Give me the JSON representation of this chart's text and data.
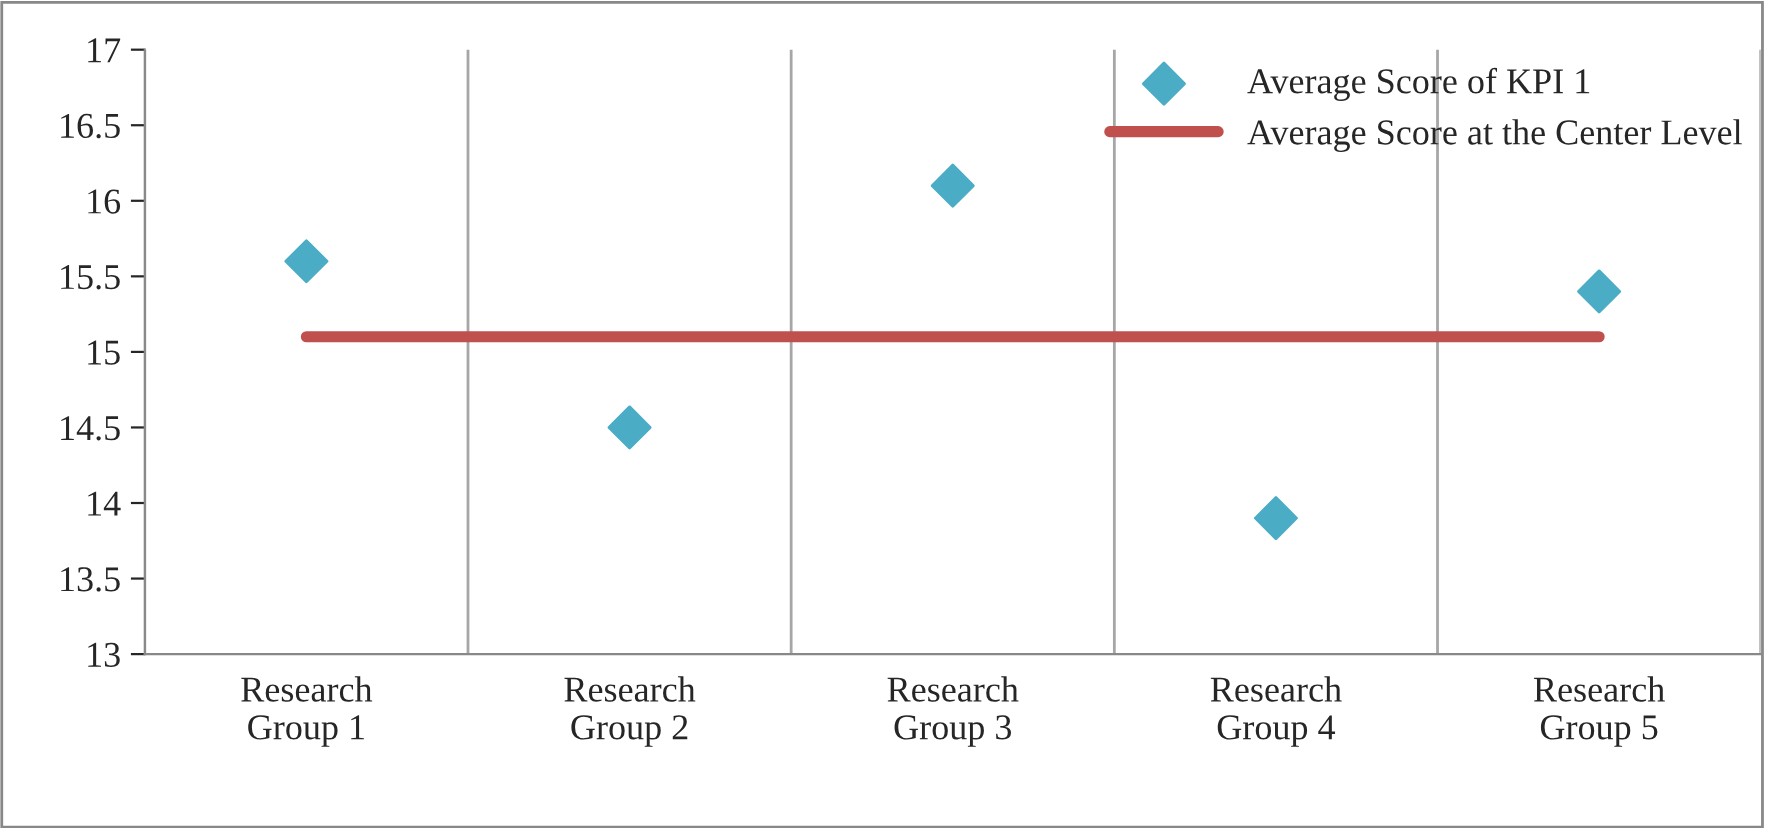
{
  "chart_data": {
    "type": "scatter",
    "categories": [
      "Research Group 1",
      "Research Group 2",
      "Research Group 3",
      "Research Group 4",
      "Research Group 5"
    ],
    "series": [
      {
        "name": "Average Score of KPI 1",
        "color": "#4bacc6",
        "marker": "diamond",
        "values": [
          15.6,
          14.5,
          16.1,
          13.9,
          15.4
        ]
      },
      {
        "name": "Average Score at the Center Level",
        "type": "line",
        "color": "#c0504d",
        "marker": "none",
        "line_style": "solid",
        "values": [
          15.1,
          15.1,
          15.1,
          15.1,
          15.1
        ]
      }
    ],
    "ylim": [
      13,
      17
    ],
    "yticks": [
      13,
      13.5,
      14,
      14.5,
      15,
      15.5,
      16,
      16.5,
      17
    ],
    "grid": "x",
    "legend": "top right"
  }
}
